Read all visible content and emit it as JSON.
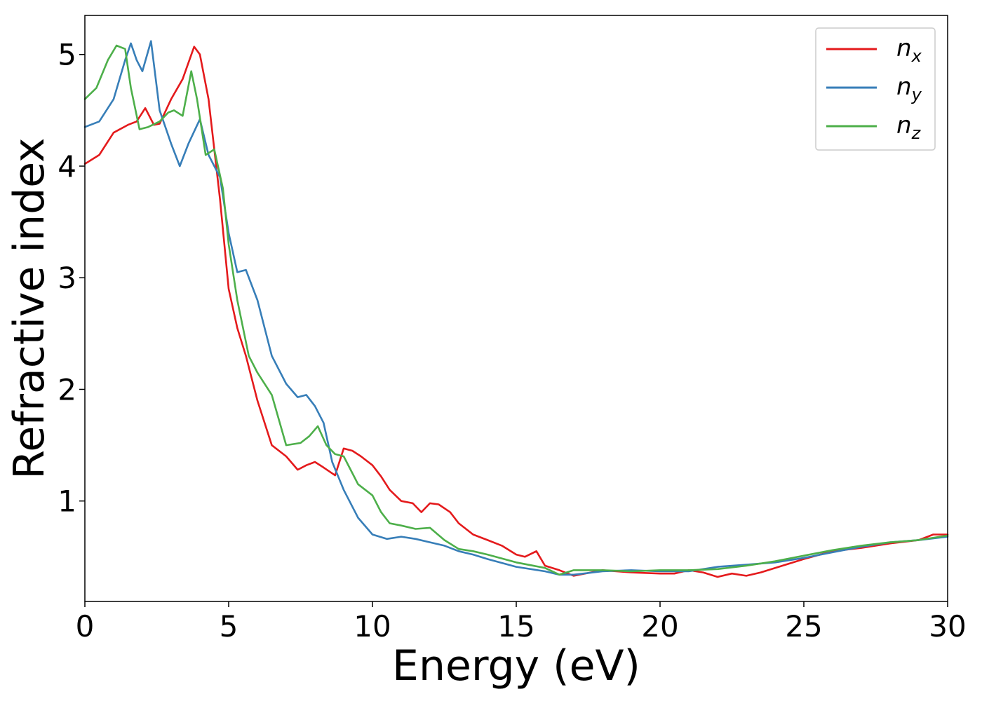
{
  "chart_data": {
    "type": "line",
    "xlabel": "Energy (eV)",
    "ylabel": "Refractive index",
    "xlim": [
      0,
      30
    ],
    "ylim": [
      0.1,
      5.35
    ],
    "xticks": [
      "0",
      "5",
      "10",
      "15",
      "20",
      "25",
      "30"
    ],
    "yticks": [
      "1",
      "2",
      "3",
      "4",
      "5"
    ],
    "grid": false,
    "legend_position": "top-right",
    "series": [
      {
        "name": "n",
        "subscript": "x",
        "color": "#e41a1c",
        "x": [
          0,
          0.5,
          1.0,
          1.5,
          1.8,
          2.1,
          2.4,
          2.6,
          3.0,
          3.4,
          3.8,
          4.0,
          4.3,
          4.7,
          5.0,
          5.3,
          5.6,
          6.0,
          6.5,
          7.0,
          7.4,
          7.7,
          8.0,
          8.3,
          8.7,
          9.0,
          9.3,
          9.6,
          10.0,
          10.3,
          10.6,
          11.0,
          11.4,
          11.7,
          12.0,
          12.3,
          12.7,
          13.0,
          13.5,
          14.0,
          14.5,
          15.0,
          15.3,
          15.7,
          16.0,
          16.5,
          17.0,
          18.0,
          19.0,
          20.0,
          20.5,
          21.0,
          21.5,
          22.0,
          22.5,
          23.0,
          23.5,
          24.0,
          25.0,
          26.0,
          27.0,
          28.0,
          29.0,
          29.5,
          30.0
        ],
        "y": [
          4.02,
          4.1,
          4.3,
          4.37,
          4.4,
          4.52,
          4.37,
          4.38,
          4.6,
          4.78,
          5.07,
          5.0,
          4.6,
          3.7,
          2.9,
          2.55,
          2.3,
          1.9,
          1.5,
          1.4,
          1.28,
          1.32,
          1.35,
          1.3,
          1.23,
          1.47,
          1.45,
          1.4,
          1.32,
          1.22,
          1.1,
          1.0,
          0.98,
          0.9,
          0.98,
          0.97,
          0.9,
          0.8,
          0.7,
          0.65,
          0.6,
          0.52,
          0.5,
          0.55,
          0.42,
          0.38,
          0.33,
          0.38,
          0.36,
          0.35,
          0.35,
          0.38,
          0.36,
          0.32,
          0.35,
          0.33,
          0.36,
          0.4,
          0.48,
          0.55,
          0.58,
          0.62,
          0.65,
          0.7,
          0.7
        ]
      },
      {
        "name": "n",
        "subscript": "y",
        "color": "#377eb8",
        "x": [
          0,
          0.5,
          1.0,
          1.4,
          1.6,
          1.8,
          2.0,
          2.3,
          2.6,
          3.0,
          3.3,
          3.6,
          4.0,
          4.3,
          4.7,
          5.0,
          5.3,
          5.6,
          6.0,
          6.5,
          7.0,
          7.4,
          7.7,
          8.0,
          8.3,
          8.6,
          9.0,
          9.5,
          10.0,
          10.5,
          11.0,
          11.5,
          12.0,
          12.5,
          13.0,
          13.5,
          14.0,
          15.0,
          16.0,
          16.5,
          17.0,
          18.0,
          19.0,
          20.0,
          21.0,
          22.0,
          23.0,
          24.0,
          25.0,
          26.0,
          27.0,
          28.0,
          29.0,
          30.0
        ],
        "y": [
          4.35,
          4.4,
          4.6,
          4.95,
          5.1,
          4.95,
          4.85,
          5.12,
          4.5,
          4.2,
          4.0,
          4.2,
          4.42,
          4.1,
          3.9,
          3.4,
          3.05,
          3.07,
          2.8,
          2.3,
          2.05,
          1.93,
          1.95,
          1.85,
          1.7,
          1.35,
          1.1,
          0.85,
          0.7,
          0.66,
          0.68,
          0.66,
          0.63,
          0.6,
          0.55,
          0.52,
          0.48,
          0.41,
          0.37,
          0.34,
          0.34,
          0.37,
          0.38,
          0.37,
          0.37,
          0.41,
          0.43,
          0.45,
          0.49,
          0.54,
          0.59,
          0.63,
          0.65,
          0.68
        ]
      },
      {
        "name": "n",
        "subscript": "z",
        "color": "#4daf4a",
        "x": [
          0,
          0.4,
          0.8,
          1.1,
          1.4,
          1.6,
          1.9,
          2.2,
          2.6,
          2.9,
          3.1,
          3.4,
          3.7,
          3.9,
          4.2,
          4.5,
          4.8,
          5.0,
          5.3,
          5.7,
          6.0,
          6.5,
          7.0,
          7.5,
          7.8,
          8.1,
          8.4,
          8.7,
          9.0,
          9.5,
          10.0,
          10.3,
          10.6,
          11.0,
          11.5,
          12.0,
          12.5,
          13.0,
          13.5,
          14.0,
          15.0,
          16.0,
          16.5,
          17.0,
          18.0,
          19.0,
          20.0,
          21.0,
          22.0,
          23.0,
          24.0,
          25.0,
          26.0,
          27.0,
          28.0,
          29.0,
          30.0
        ],
        "y": [
          4.6,
          4.7,
          4.95,
          5.08,
          5.05,
          4.7,
          4.33,
          4.35,
          4.4,
          4.48,
          4.5,
          4.45,
          4.85,
          4.6,
          4.1,
          4.15,
          3.8,
          3.3,
          2.8,
          2.3,
          2.15,
          1.95,
          1.5,
          1.52,
          1.58,
          1.67,
          1.5,
          1.42,
          1.4,
          1.15,
          1.05,
          0.9,
          0.8,
          0.78,
          0.75,
          0.76,
          0.65,
          0.57,
          0.55,
          0.52,
          0.45,
          0.4,
          0.34,
          0.38,
          0.38,
          0.37,
          0.38,
          0.38,
          0.39,
          0.42,
          0.46,
          0.51,
          0.56,
          0.6,
          0.63,
          0.65,
          0.69
        ]
      }
    ]
  }
}
